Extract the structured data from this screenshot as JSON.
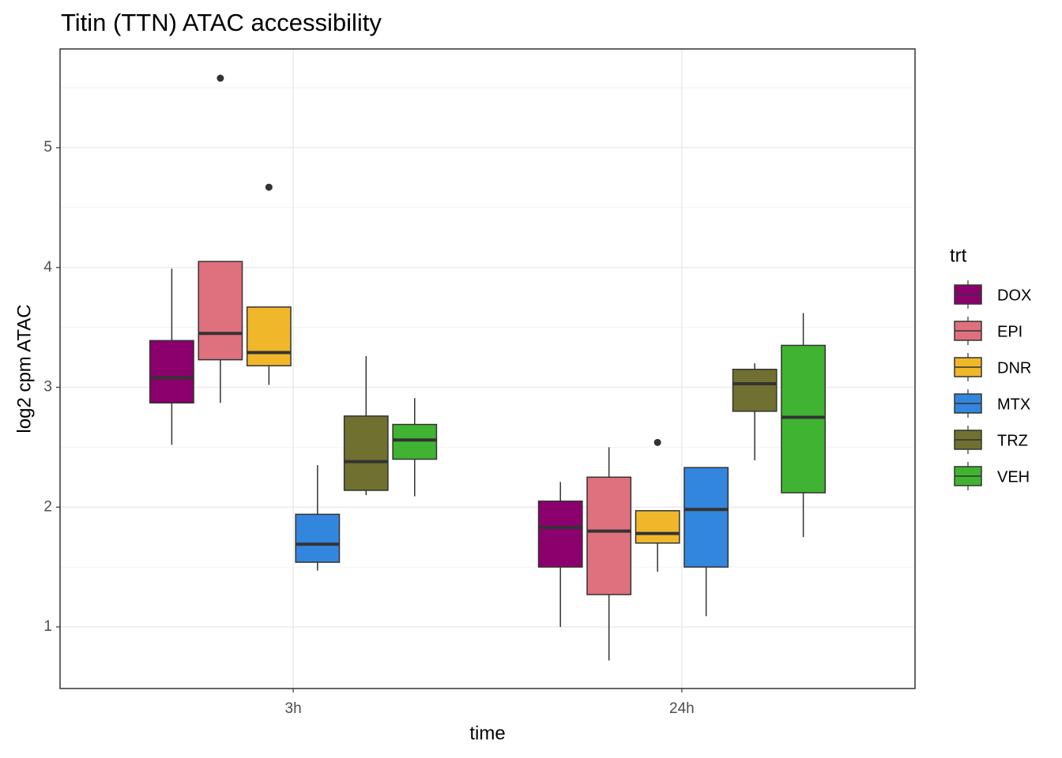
{
  "chart_data": {
    "type": "box",
    "title": "Titin (TTN) ATAC accessibility",
    "x_label": "time",
    "y_label": "log2 cpm ATAC",
    "legend_title": "trt",
    "legend_position": "right",
    "grid": true,
    "categories": [
      "3h",
      "24h"
    ],
    "ylim": [
      0.486,
      5.824
    ],
    "yticks": [
      1,
      2,
      3,
      4,
      5
    ],
    "y_minor_grid": [
      1.5,
      2.5,
      3.5,
      4.5,
      5.5
    ],
    "series": [
      {
        "name": "DOX",
        "color": "#8B006D",
        "values": [
          {
            "min": 2.52,
            "q1": 2.87,
            "median": 3.08,
            "q3": 3.39,
            "max": 3.99,
            "outliers": []
          },
          {
            "min": 1.0,
            "q1": 1.5,
            "median": 1.83,
            "q3": 2.05,
            "max": 2.21,
            "outliers": []
          }
        ]
      },
      {
        "name": "EPI",
        "color": "#DF707E",
        "values": [
          {
            "min": 2.87,
            "q1": 3.23,
            "median": 3.45,
            "q3": 4.05,
            "max": 4.05,
            "outliers": [
              5.58
            ]
          },
          {
            "min": 0.72,
            "q1": 1.27,
            "median": 1.8,
            "q3": 2.25,
            "max": 2.5,
            "outliers": []
          }
        ]
      },
      {
        "name": "DNR",
        "color": "#F1B72B",
        "values": [
          {
            "min": 3.02,
            "q1": 3.18,
            "median": 3.29,
            "q3": 3.67,
            "max": 3.67,
            "outliers": [
              4.67
            ]
          },
          {
            "min": 1.46,
            "q1": 1.7,
            "median": 1.78,
            "q3": 1.97,
            "max": 1.97,
            "outliers": [
              2.54
            ]
          }
        ]
      },
      {
        "name": "MTX",
        "color": "#3386DD",
        "values": [
          {
            "min": 1.47,
            "q1": 1.54,
            "median": 1.69,
            "q3": 1.94,
            "max": 2.35,
            "outliers": []
          },
          {
            "min": 1.09,
            "q1": 1.5,
            "median": 1.98,
            "q3": 2.33,
            "max": 2.33,
            "outliers": []
          }
        ]
      },
      {
        "name": "TRZ",
        "color": "#707031",
        "values": [
          {
            "min": 2.1,
            "q1": 2.14,
            "median": 2.38,
            "q3": 2.76,
            "max": 3.26,
            "outliers": []
          },
          {
            "min": 2.39,
            "q1": 2.8,
            "median": 3.03,
            "q3": 3.15,
            "max": 3.2,
            "outliers": []
          }
        ]
      },
      {
        "name": "VEH",
        "color": "#41B333",
        "values": [
          {
            "min": 2.09,
            "q1": 2.4,
            "median": 2.56,
            "q3": 2.69,
            "max": 2.91,
            "outliers": []
          },
          {
            "min": 1.75,
            "q1": 2.12,
            "median": 2.75,
            "q3": 3.35,
            "max": 3.62,
            "outliers": []
          }
        ]
      }
    ]
  }
}
